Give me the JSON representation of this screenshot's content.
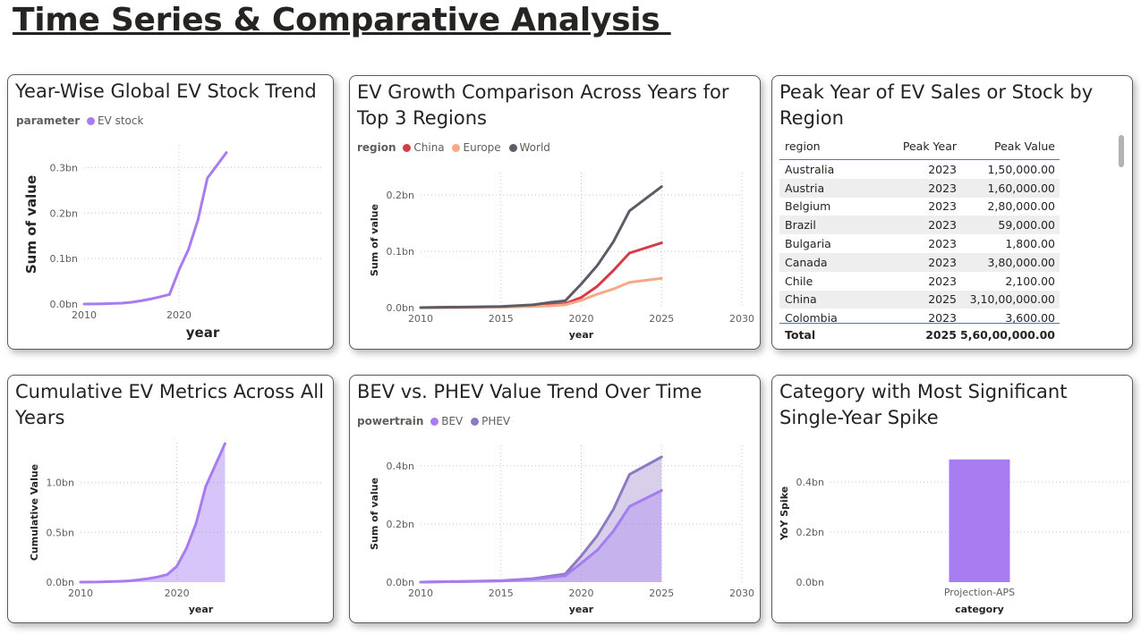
{
  "page": {
    "title": "Time Series & Comparative Analysis "
  },
  "cards": {
    "stock": {
      "title": "Year-Wise Global EV Stock Trend",
      "legend": {
        "title": "parameter",
        "items": [
          {
            "label": "EV stock",
            "color": "#a67cf0"
          }
        ]
      }
    },
    "growth": {
      "title": "EV Growth Comparison Across Years for Top 3 Regions",
      "legend": {
        "title": "region",
        "items": [
          {
            "label": "China",
            "color": "#d63c46"
          },
          {
            "label": "Europe",
            "color": "#f7a987"
          },
          {
            "label": "World",
            "color": "#5b5d66"
          }
        ]
      }
    },
    "peak": {
      "title": "Peak Year of EV Sales or Stock by Region",
      "table": {
        "columns": [
          "region",
          "Peak Year",
          "Peak Value"
        ],
        "rows": [
          [
            "Australia",
            "2023",
            "1,50,000.00"
          ],
          [
            "Austria",
            "2023",
            "1,60,000.00"
          ],
          [
            "Belgium",
            "2023",
            "2,80,000.00"
          ],
          [
            "Brazil",
            "2023",
            "59,000.00"
          ],
          [
            "Bulgaria",
            "2023",
            "1,800.00"
          ],
          [
            "Canada",
            "2023",
            "3,80,000.00"
          ],
          [
            "Chile",
            "2023",
            "2,100.00"
          ],
          [
            "China",
            "2025",
            "3,10,00,000.00"
          ],
          [
            "Colombia",
            "2023",
            "3,600.00"
          ]
        ],
        "total": [
          "Total",
          "2025",
          "5,60,00,000.00"
        ]
      }
    },
    "cumulative": {
      "title": "Cumulative EV Metrics Across All Years"
    },
    "powertrain": {
      "title": "BEV vs. PHEV Value Trend Over Time",
      "legend": {
        "title": "powertrain",
        "items": [
          {
            "label": "BEV",
            "color": "#a67cf0"
          },
          {
            "label": "PHEV",
            "color": "#8e79c4"
          }
        ]
      }
    },
    "spike": {
      "title": "Category with Most Significant Single-Year Spike"
    }
  },
  "chart_data": [
    {
      "id": "stock",
      "type": "line",
      "xlabel": "year",
      "ylabel": "Sum of value",
      "xlim": [
        2010,
        2035
      ],
      "ylim": [
        0,
        0.35
      ],
      "x_ticks": [
        2010,
        2020
      ],
      "y_ticks": [
        "0.0bn",
        "0.1bn",
        "0.2bn",
        "0.3bn"
      ],
      "y_tick_values": [
        0,
        0.1,
        0.2,
        0.3
      ],
      "series": [
        {
          "name": "EV stock",
          "color": "#a67cf0",
          "x": [
            2010,
            2012,
            2014,
            2015,
            2016,
            2017,
            2018,
            2019,
            2020,
            2021,
            2022,
            2023,
            2025
          ],
          "y": [
            0.0,
            0.0005,
            0.002,
            0.004,
            0.007,
            0.011,
            0.016,
            0.021,
            0.075,
            0.12,
            0.185,
            0.277,
            0.333
          ]
        }
      ]
    },
    {
      "id": "growth",
      "type": "line",
      "xlabel": "year",
      "ylabel": "Sum of value",
      "xlim": [
        2010,
        2030
      ],
      "ylim": [
        0,
        0.24
      ],
      "x_ticks": [
        2010,
        2015,
        2020,
        2025,
        2030
      ],
      "y_ticks": [
        "0.0bn",
        "0.1bn",
        "0.2bn"
      ],
      "y_tick_values": [
        0,
        0.1,
        0.2
      ],
      "series": [
        {
          "name": "China",
          "color": "#d63c46",
          "x": [
            2010,
            2015,
            2017,
            2018,
            2019,
            2020,
            2021,
            2022,
            2023,
            2025
          ],
          "y": [
            0.0,
            0.001,
            0.003,
            0.005,
            0.007,
            0.018,
            0.038,
            0.066,
            0.097,
            0.115
          ]
        },
        {
          "name": "Europe",
          "color": "#f7a987",
          "x": [
            2010,
            2015,
            2017,
            2018,
            2019,
            2020,
            2021,
            2022,
            2023,
            2025
          ],
          "y": [
            0.0,
            0.0008,
            0.002,
            0.003,
            0.005,
            0.013,
            0.024,
            0.033,
            0.045,
            0.052
          ]
        },
        {
          "name": "World",
          "color": "#5b5d66",
          "x": [
            2010,
            2015,
            2017,
            2018,
            2019,
            2020,
            2021,
            2022,
            2023,
            2025
          ],
          "y": [
            0.0,
            0.002,
            0.005,
            0.009,
            0.012,
            0.042,
            0.075,
            0.117,
            0.172,
            0.215
          ]
        }
      ]
    },
    {
      "id": "cumulative",
      "type": "area",
      "xlabel": "year",
      "ylabel": "Cumulative Value",
      "xlim": [
        2010,
        2035
      ],
      "ylim": [
        0,
        1.4
      ],
      "x_ticks": [
        2010,
        2020
      ],
      "y_ticks": [
        "0.0bn",
        "0.5bn",
        "1.0bn"
      ],
      "y_tick_values": [
        0,
        0.5,
        1.0
      ],
      "series": [
        {
          "name": "",
          "color": "#a67cf0",
          "x": [
            2010,
            2012,
            2014,
            2015,
            2016,
            2017,
            2018,
            2019,
            2020,
            2021,
            2022,
            2023,
            2025
          ],
          "y": [
            0.0,
            0.002,
            0.008,
            0.013,
            0.022,
            0.035,
            0.052,
            0.075,
            0.16,
            0.34,
            0.59,
            0.96,
            1.39
          ]
        }
      ]
    },
    {
      "id": "powertrain",
      "type": "area",
      "xlabel": "year",
      "ylabel": "Sum of value",
      "xlim": [
        2010,
        2030
      ],
      "ylim": [
        0,
        0.47
      ],
      "x_ticks": [
        2010,
        2015,
        2020,
        2025,
        2030
      ],
      "y_ticks": [
        "0.0bn",
        "0.2bn",
        "0.4bn"
      ],
      "y_tick_values": [
        0,
        0.2,
        0.4
      ],
      "series": [
        {
          "name": "PHEV",
          "color": "#8e79c4",
          "x": [
            2010,
            2015,
            2017,
            2018,
            2019,
            2020,
            2021,
            2022,
            2023,
            2025
          ],
          "y": [
            0.0,
            0.005,
            0.012,
            0.02,
            0.028,
            0.09,
            0.16,
            0.25,
            0.37,
            0.43
          ]
        },
        {
          "name": "BEV",
          "color": "#a67cf0",
          "x": [
            2010,
            2015,
            2017,
            2018,
            2019,
            2020,
            2021,
            2022,
            2023,
            2025
          ],
          "y": [
            0.0,
            0.004,
            0.01,
            0.016,
            0.022,
            0.065,
            0.11,
            0.175,
            0.26,
            0.315
          ]
        }
      ]
    },
    {
      "id": "spike",
      "type": "bar",
      "xlabel": "category",
      "ylabel": "YoY Spike",
      "ylim": [
        0,
        0.55
      ],
      "y_ticks": [
        "0.0bn",
        "0.2bn",
        "0.4bn"
      ],
      "y_tick_values": [
        0,
        0.2,
        0.4
      ],
      "categories": [
        "Projection-APS"
      ],
      "values": [
        0.49
      ],
      "color": "#a67cf0"
    }
  ]
}
